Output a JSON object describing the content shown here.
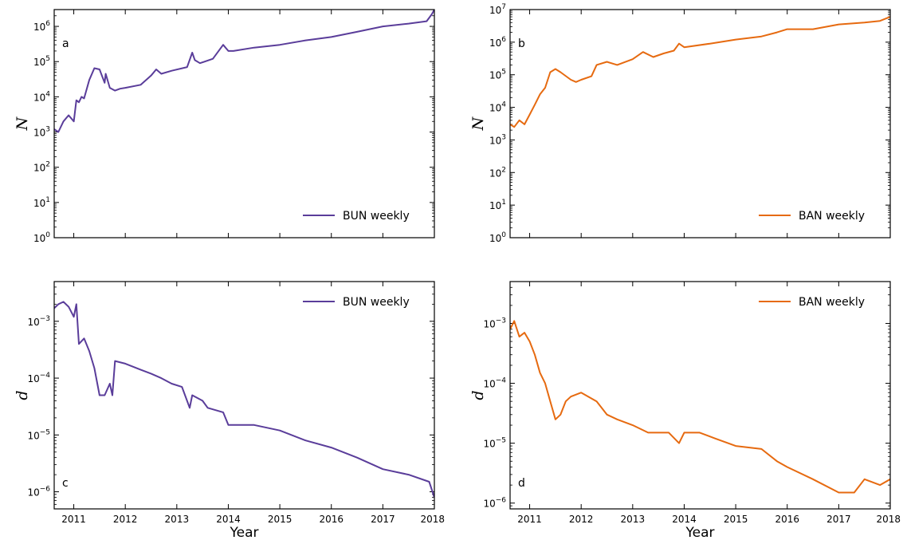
{
  "chart_data": [
    {
      "id": "a",
      "type": "line",
      "panel_label": "a",
      "xlabel": "",
      "ylabel": "N",
      "yscale": "log",
      "xlim": [
        2010.62,
        2018.0
      ],
      "ylim": [
        1,
        3000000
      ],
      "y_ticks": [
        1,
        10,
        100,
        1000,
        10000,
        100000,
        1000000
      ],
      "y_tick_labels": [
        [
          "10",
          "0"
        ],
        [
          "10",
          "1"
        ],
        [
          "10",
          "2"
        ],
        [
          "10",
          "3"
        ],
        [
          "10",
          "4"
        ],
        [
          "10",
          "5"
        ],
        [
          "10",
          "6"
        ]
      ],
      "x_ticks": [
        2011,
        2012,
        2013,
        2014,
        2015,
        2016,
        2017,
        2018
      ],
      "x_tick_labels": [],
      "legend_position": "bottom-right",
      "color": "#5a3d9a",
      "series": [
        {
          "name": "BUN weekly",
          "x": [
            2010.62,
            2010.7,
            2010.8,
            2010.9,
            2011.0,
            2011.05,
            2011.1,
            2011.15,
            2011.2,
            2011.3,
            2011.4,
            2011.5,
            2011.6,
            2011.62,
            2011.7,
            2011.8,
            2011.9,
            2012.0,
            2012.3,
            2012.5,
            2012.6,
            2012.7,
            2012.9,
            2013.2,
            2013.3,
            2013.35,
            2013.45,
            2013.7,
            2013.9,
            2014.0,
            2014.1,
            2014.5,
            2015.0,
            2015.5,
            2016.0,
            2016.5,
            2017.0,
            2017.5,
            2017.85,
            2017.95,
            2018.0
          ],
          "y": [
            1200,
            1000,
            2000,
            3000,
            2000,
            8000,
            7000,
            10000,
            9000,
            30000,
            65000,
            60000,
            25000,
            45000,
            18000,
            15000,
            17000,
            18000,
            22000,
            40000,
            60000,
            45000,
            55000,
            70000,
            180000,
            110000,
            90000,
            120000,
            300000,
            200000,
            200000,
            250000,
            300000,
            400000,
            500000,
            700000,
            1000000,
            1200000,
            1400000,
            2200000,
            3000000
          ]
        }
      ]
    },
    {
      "id": "b",
      "type": "line",
      "panel_label": "b",
      "xlabel": "",
      "ylabel": "N",
      "yscale": "log",
      "xlim": [
        2010.62,
        2018.0
      ],
      "ylim": [
        1,
        10000000
      ],
      "y_ticks": [
        1,
        10,
        100,
        1000,
        10000,
        100000,
        1000000,
        10000000
      ],
      "y_tick_labels": [
        [
          "10",
          "0"
        ],
        [
          "10",
          "1"
        ],
        [
          "10",
          "2"
        ],
        [
          "10",
          "3"
        ],
        [
          "10",
          "4"
        ],
        [
          "10",
          "5"
        ],
        [
          "10",
          "6"
        ],
        [
          "10",
          "7"
        ]
      ],
      "x_ticks": [
        2011,
        2012,
        2013,
        2014,
        2015,
        2016,
        2017,
        2018
      ],
      "x_tick_labels": [],
      "legend_position": "bottom-right",
      "color": "#e66a10",
      "series": [
        {
          "name": "BAN weekly",
          "x": [
            2010.62,
            2010.7,
            2010.8,
            2010.9,
            2011.0,
            2011.1,
            2011.2,
            2011.3,
            2011.4,
            2011.5,
            2011.6,
            2011.8,
            2011.9,
            2012.0,
            2012.2,
            2012.3,
            2012.5,
            2012.7,
            2013.0,
            2013.2,
            2013.4,
            2013.6,
            2013.8,
            2013.9,
            2014.0,
            2014.5,
            2015.0,
            2015.5,
            2015.8,
            2016.0,
            2016.5,
            2017.0,
            2017.5,
            2017.8,
            2018.0
          ],
          "y": [
            3000,
            2500,
            4000,
            3000,
            6000,
            12000,
            25000,
            40000,
            120000,
            150000,
            120000,
            70000,
            60000,
            70000,
            90000,
            200000,
            250000,
            200000,
            300000,
            500000,
            350000,
            450000,
            550000,
            900000,
            700000,
            900000,
            1200000,
            1500000,
            2000000,
            2500000,
            2500000,
            3500000,
            4000000,
            4500000,
            6000000
          ]
        }
      ]
    },
    {
      "id": "c",
      "type": "line",
      "panel_label": "c",
      "xlabel": "Year",
      "ylabel": "d",
      "yscale": "log",
      "xlim": [
        2010.62,
        2018.0
      ],
      "ylim": [
        5e-07,
        0.005
      ],
      "y_ticks": [
        1e-06,
        1e-05,
        0.0001,
        0.001
      ],
      "y_tick_labels": [
        [
          "10",
          "−6"
        ],
        [
          "10",
          "−5"
        ],
        [
          "10",
          "−4"
        ],
        [
          "10",
          "−3"
        ]
      ],
      "x_ticks": [
        2011,
        2012,
        2013,
        2014,
        2015,
        2016,
        2017,
        2018
      ],
      "x_tick_labels": [
        "2011",
        "2012",
        "2013",
        "2014",
        "2015",
        "2016",
        "2017",
        "2018"
      ],
      "legend_position": "top-right",
      "color": "#5a3d9a",
      "series": [
        {
          "name": "BUN weekly",
          "x": [
            2010.62,
            2010.7,
            2010.8,
            2010.9,
            2011.0,
            2011.05,
            2011.1,
            2011.2,
            2011.3,
            2011.4,
            2011.5,
            2011.6,
            2011.7,
            2011.75,
            2011.8,
            2012.0,
            2012.3,
            2012.5,
            2012.7,
            2012.9,
            2013.1,
            2013.25,
            2013.3,
            2013.5,
            2013.6,
            2013.9,
            2014.0,
            2014.5,
            2015.0,
            2015.5,
            2016.0,
            2016.5,
            2017.0,
            2017.5,
            2017.9,
            2018.0
          ],
          "y": [
            0.0017,
            0.002,
            0.0022,
            0.0018,
            0.0012,
            0.002,
            0.0004,
            0.0005,
            0.0003,
            0.00015,
            5e-05,
            5e-05,
            8e-05,
            5e-05,
            0.0002,
            0.00018,
            0.00014,
            0.00012,
            0.0001,
            8e-05,
            7e-05,
            3e-05,
            5e-05,
            4e-05,
            3e-05,
            2.5e-05,
            1.5e-05,
            1.5e-05,
            1.2e-05,
            8e-06,
            6e-06,
            4e-06,
            2.5e-06,
            2e-06,
            1.5e-06,
            8e-07
          ]
        }
      ]
    },
    {
      "id": "d",
      "type": "line",
      "panel_label": "d",
      "xlabel": "Year",
      "ylabel": "d",
      "yscale": "log",
      "xlim": [
        2010.62,
        2018.0
      ],
      "ylim": [
        8e-07,
        0.005
      ],
      "y_ticks": [
        1e-06,
        1e-05,
        0.0001,
        0.001
      ],
      "y_tick_labels": [
        [
          "10",
          "−6"
        ],
        [
          "10",
          "−5"
        ],
        [
          "10",
          "−4"
        ],
        [
          "10",
          "−3"
        ]
      ],
      "x_ticks": [
        2011,
        2012,
        2013,
        2014,
        2015,
        2016,
        2017,
        2018
      ],
      "x_tick_labels": [
        "2011",
        "2012",
        "2013",
        "2014",
        "2015",
        "2016",
        "2017",
        "2018"
      ],
      "legend_position": "top-right",
      "color": "#e66a10",
      "series": [
        {
          "name": "BAN weekly",
          "x": [
            2010.62,
            2010.7,
            2010.8,
            2010.9,
            2011.0,
            2011.1,
            2011.2,
            2011.3,
            2011.4,
            2011.5,
            2011.6,
            2011.7,
            2011.8,
            2012.0,
            2012.3,
            2012.5,
            2012.7,
            2013.0,
            2013.3,
            2013.5,
            2013.7,
            2013.9,
            2014.0,
            2014.3,
            2014.6,
            2015.0,
            2015.5,
            2015.8,
            2016.0,
            2016.5,
            2017.0,
            2017.3,
            2017.5,
            2017.8,
            2018.0
          ],
          "y": [
            0.0008,
            0.0011,
            0.0006,
            0.0007,
            0.0005,
            0.0003,
            0.00015,
            0.0001,
            5e-05,
            2.5e-05,
            3e-05,
            5e-05,
            6e-05,
            7e-05,
            5e-05,
            3e-05,
            2.5e-05,
            2e-05,
            1.5e-05,
            1.5e-05,
            1.5e-05,
            1e-05,
            1.5e-05,
            1.5e-05,
            1.2e-05,
            9e-06,
            8e-06,
            5e-06,
            4e-06,
            2.5e-06,
            1.5e-06,
            1.5e-06,
            2.5e-06,
            2e-06,
            2.5e-06
          ]
        }
      ]
    }
  ]
}
